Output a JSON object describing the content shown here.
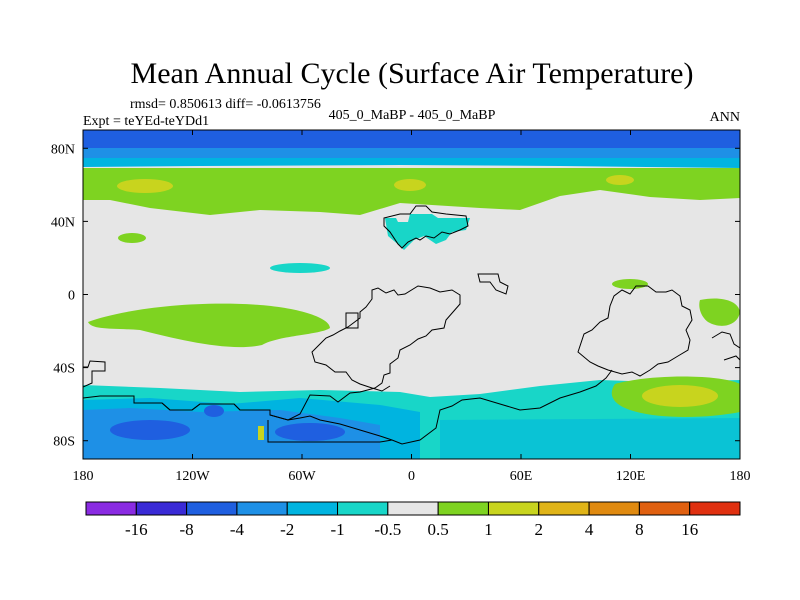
{
  "chart_data": {
    "type": "heatmap",
    "title": "Mean Annual Cycle (Surface Air Temperature)",
    "stats": "rmsd= 0.850613 diff= -0.0613756",
    "expt": "Expt = teYEd-teYDd1",
    "comparison": "405_0_MaBP - 405_0_MaBP",
    "season": "ANN",
    "lon_range": [
      -180,
      180
    ],
    "lat_range": [
      -90,
      90
    ],
    "x_ticks": [
      {
        "value": -180,
        "label": "180"
      },
      {
        "value": -120,
        "label": "120W"
      },
      {
        "value": -60,
        "label": "60W"
      },
      {
        "value": 0,
        "label": "0"
      },
      {
        "value": 60,
        "label": "60E"
      },
      {
        "value": 120,
        "label": "120E"
      },
      {
        "value": 180,
        "label": "180"
      }
    ],
    "y_ticks": [
      {
        "value": 80,
        "label": "80N"
      },
      {
        "value": 40,
        "label": "40N"
      },
      {
        "value": 0,
        "label": "0"
      },
      {
        "value": -40,
        "label": "40S"
      },
      {
        "value": -80,
        "label": "80S"
      }
    ],
    "colorbar": {
      "levels": [
        "-16",
        "-8",
        "-4",
        "-2",
        "-1",
        "-0.5",
        "0.5",
        "1",
        "2",
        "4",
        "8",
        "16"
      ],
      "colors": [
        "#8a2be2",
        "#3a2ad6",
        "#1f5fe0",
        "#1e90e6",
        "#00b4e0",
        "#18d6c8",
        "#e6e6e6",
        "#7ed321",
        "#c8d41e",
        "#e0b418",
        "#e08a10",
        "#e06010",
        "#e03010"
      ]
    },
    "regions": [
      {
        "id": "arctic-band-strong",
        "value_range": "-4 to -2",
        "lat": [
          78,
          90
        ]
      },
      {
        "id": "arctic-band",
        "value_range": "-2 to -1",
        "lat": [
          72,
          82
        ]
      },
      {
        "id": "nh-midlat-warm",
        "value_range": "0.5 to 1",
        "lat": [
          50,
          70
        ]
      },
      {
        "id": "nh-warm-patches",
        "value_range": "1 to 2",
        "lat": [
          55,
          65
        ]
      },
      {
        "id": "south-pacific-warm",
        "value_range": "0.5 to 1",
        "lat": [
          -25,
          -5
        ]
      },
      {
        "id": "indian-pacific-warm",
        "value_range": "1 to 2",
        "lat": [
          -60,
          -50
        ]
      },
      {
        "id": "southern-ocean-cool",
        "value_range": "-1 to -0.5",
        "lat": [
          -90,
          -50
        ]
      },
      {
        "id": "antarctic-cool",
        "value_range": "-4 to -1",
        "lat": [
          -90,
          -55
        ]
      }
    ],
    "xlabel": "",
    "ylabel": ""
  }
}
